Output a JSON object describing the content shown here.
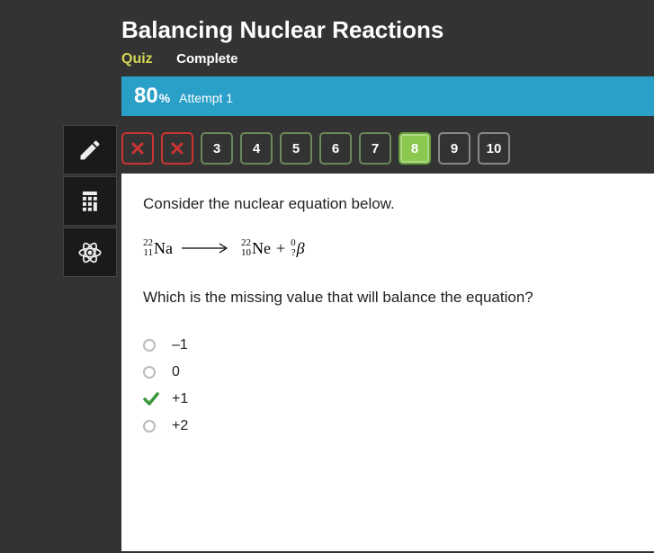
{
  "header": {
    "title": "Balancing Nuclear Reactions",
    "quiz_label": "Quiz",
    "status": "Complete"
  },
  "score": {
    "value": "80",
    "pct_symbol": "%",
    "attempt": "Attempt 1"
  },
  "qnav": [
    {
      "label": "",
      "state": "wrong"
    },
    {
      "label": "",
      "state": "wrong"
    },
    {
      "label": "3",
      "state": "normal"
    },
    {
      "label": "4",
      "state": "normal"
    },
    {
      "label": "5",
      "state": "normal"
    },
    {
      "label": "6",
      "state": "normal"
    },
    {
      "label": "7",
      "state": "normal"
    },
    {
      "label": "8",
      "state": "active"
    },
    {
      "label": "9",
      "state": "gray"
    },
    {
      "label": "10",
      "state": "gray"
    }
  ],
  "question": {
    "prompt1": "Consider the nuclear equation below.",
    "prompt2": "Which is the missing value that will balance the equation?",
    "eq": {
      "left": {
        "mass": "22",
        "atomic": "11",
        "sym": "Na"
      },
      "right1": {
        "mass": "22",
        "atomic": "10",
        "sym": "Ne"
      },
      "plus": "+",
      "right2": {
        "mass": "0",
        "atomic": "?",
        "sym": "β"
      }
    },
    "options": [
      {
        "text": "–1",
        "selected": false
      },
      {
        "text": "0",
        "selected": false
      },
      {
        "text": "+1",
        "selected": true
      },
      {
        "text": "+2",
        "selected": false
      }
    ]
  },
  "colors": {
    "score_bar": "#2aa0c8",
    "active_q": "#8ac850",
    "wrong_border": "#cc3333",
    "check": "#3a9a3a"
  }
}
